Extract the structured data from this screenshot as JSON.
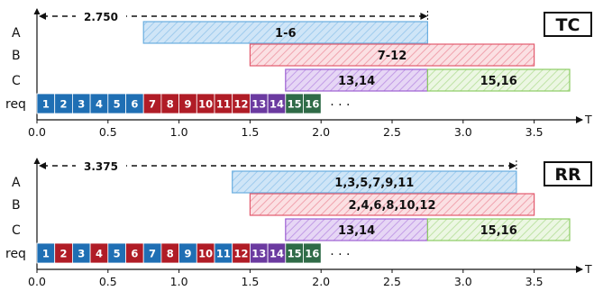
{
  "axis": {
    "label": "T",
    "ticks": [
      "0.0",
      "0.5",
      "1.0",
      "1.5",
      "2.0",
      "2.5",
      "3.0",
      "3.5"
    ],
    "tick_values": [
      0,
      0.5,
      1.0,
      1.5,
      2.0,
      2.5,
      3.0,
      3.5
    ]
  },
  "colors": {
    "blue_fill": "#cfe5f7",
    "blue_stroke": "#6aaee0",
    "red_fill": "#f9d3d8",
    "red_stroke": "#e25b6e",
    "purple_fill": "#dcc7f0",
    "purple_stroke": "#9d5fd2",
    "green_fill": "#e3f3d6",
    "green_stroke": "#8ccc63",
    "req_blue": "#1f6fb4",
    "req_red": "#b01c26",
    "req_purple": "#6b3aa0",
    "req_green": "#2f6b47"
  },
  "panels": [
    {
      "badge": "TC",
      "duration_label": "2.750",
      "duration_end": 2.75,
      "rows": [
        "A",
        "B",
        "C"
      ],
      "req_label": "req",
      "bars": [
        {
          "row": 0,
          "start": 0.75,
          "end": 2.75,
          "label": "1-6",
          "color": "blue"
        },
        {
          "row": 1,
          "start": 1.5,
          "end": 3.5,
          "label": "7-12",
          "color": "red"
        },
        {
          "row": 2,
          "start": 1.75,
          "end": 2.75,
          "label": "13,14",
          "color": "purple"
        },
        {
          "row": 2,
          "start": 2.75,
          "end": 3.75,
          "label": "15,16",
          "color": "green"
        }
      ],
      "requests": [
        "1",
        "2",
        "3",
        "4",
        "5",
        "6",
        "7",
        "8",
        "9",
        "10",
        "11",
        "12",
        "13",
        "14",
        "15",
        "16"
      ],
      "request_colors": [
        "blue",
        "blue",
        "blue",
        "blue",
        "blue",
        "blue",
        "red",
        "red",
        "red",
        "red",
        "red",
        "red",
        "purple",
        "purple",
        "green",
        "green"
      ],
      "ellipsis": "· · ·"
    },
    {
      "badge": "RR",
      "duration_label": "3.375",
      "duration_end": 3.375,
      "rows": [
        "A",
        "B",
        "C"
      ],
      "req_label": "req",
      "bars": [
        {
          "row": 0,
          "start": 1.375,
          "end": 3.375,
          "label": "1,3,5,7,9,11",
          "color": "blue"
        },
        {
          "row": 1,
          "start": 1.5,
          "end": 3.5,
          "label": "2,4,6,8,10,12",
          "color": "red"
        },
        {
          "row": 2,
          "start": 1.75,
          "end": 2.75,
          "label": "13,14",
          "color": "purple"
        },
        {
          "row": 2,
          "start": 2.75,
          "end": 3.75,
          "label": "15,16",
          "color": "green"
        }
      ],
      "requests": [
        "1",
        "2",
        "3",
        "4",
        "5",
        "6",
        "7",
        "8",
        "9",
        "10",
        "11",
        "12",
        "13",
        "14",
        "15",
        "16"
      ],
      "request_colors": [
        "blue",
        "red",
        "blue",
        "red",
        "blue",
        "red",
        "blue",
        "red",
        "blue",
        "red",
        "blue",
        "red",
        "purple",
        "purple",
        "green",
        "green"
      ],
      "ellipsis": "· · ·"
    }
  ]
}
